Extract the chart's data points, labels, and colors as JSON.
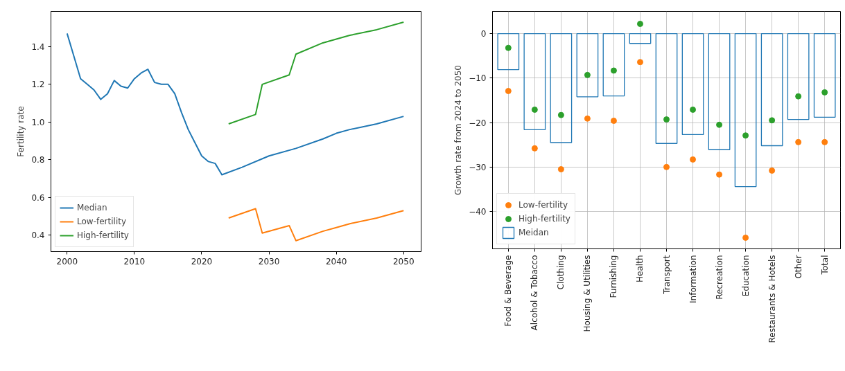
{
  "chart_data": [
    {
      "type": "line",
      "ylabel": "Fertility rate",
      "xlim": [
        1997.6,
        2052.6
      ],
      "ylim": [
        0.312,
        1.587
      ],
      "xticks": [
        2000,
        2010,
        2020,
        2030,
        2040,
        2050
      ],
      "yticks": [
        {
          "value": 0.4,
          "label": "0.4"
        },
        {
          "value": 0.6,
          "label": "0.6"
        },
        {
          "value": 0.8,
          "label": "0.8"
        },
        {
          "value": 1.0,
          "label": "1.0"
        },
        {
          "value": 1.2,
          "label": "1.2"
        },
        {
          "value": 1.4,
          "label": "1.4"
        }
      ],
      "grid": false,
      "legend": "bottom left",
      "series": [
        {
          "name": "Median",
          "color": "#1f77b4",
          "x": [
            2000,
            2001,
            2002,
            2003,
            2004,
            2005,
            2006,
            2007,
            2008,
            2009,
            2010,
            2011,
            2012,
            2013,
            2014,
            2015,
            2016,
            2017,
            2018,
            2019,
            2020,
            2021,
            2022,
            2023,
            2026,
            2030,
            2034,
            2038,
            2040,
            2042,
            2046,
            2050
          ],
          "values": [
            1.47,
            1.35,
            1.23,
            1.2,
            1.17,
            1.12,
            1.15,
            1.22,
            1.19,
            1.18,
            1.23,
            1.26,
            1.28,
            1.21,
            1.2,
            1.2,
            1.15,
            1.05,
            0.96,
            0.89,
            0.82,
            0.79,
            0.78,
            0.72,
            0.76,
            0.82,
            0.86,
            0.91,
            0.94,
            0.96,
            0.99,
            1.03
          ]
        },
        {
          "name": "Low-fertility",
          "color": "#ff7f0e",
          "x": [
            2024,
            2028,
            2029,
            2033,
            2034,
            2038,
            2040,
            2042,
            2046,
            2050
          ],
          "values": [
            0.49,
            0.54,
            0.41,
            0.45,
            0.37,
            0.42,
            0.44,
            0.46,
            0.49,
            0.53
          ]
        },
        {
          "name": "High-fertility",
          "color": "#2ca02c",
          "x": [
            2024,
            2028,
            2029,
            2033,
            2034,
            2038,
            2040,
            2042,
            2046,
            2050
          ],
          "values": [
            0.99,
            1.04,
            1.2,
            1.25,
            1.36,
            1.42,
            1.44,
            1.46,
            1.49,
            1.53
          ]
        }
      ]
    },
    {
      "type": "bar",
      "ylabel": "Growth rate from 2024 to 2050",
      "ylim": [
        -48.4,
        5.0
      ],
      "yticks": [
        {
          "value": -40,
          "label": "−40"
        },
        {
          "value": -30,
          "label": "−30"
        },
        {
          "value": -20,
          "label": "−20"
        },
        {
          "value": -10,
          "label": "−10"
        },
        0
      ],
      "grid": true,
      "legend": "bottom left",
      "marker": "circle",
      "categories": [
        "Food & Beverage",
        "Alcohol & Tobacco",
        "Clothing",
        "Housing & Utilities",
        "Furnishing",
        "Health",
        "Transport",
        "Information",
        "Recreation",
        "Education",
        "Restaurants & Hotels",
        "Other",
        "Total"
      ],
      "series": [
        {
          "name": "Low-fertility",
          "type": "scatter",
          "color": "#ff7f0e",
          "values": [
            -12.9,
            -25.8,
            -30.5,
            -19.1,
            -19.6,
            -6.4,
            -30.0,
            -28.3,
            -31.7,
            -45.9,
            -30.8,
            -24.4,
            -24.4
          ]
        },
        {
          "name": "High-fertility",
          "type": "scatter",
          "color": "#2ca02c",
          "values": [
            -3.2,
            -17.1,
            -18.3,
            -9.3,
            -8.3,
            2.2,
            -19.3,
            -17.1,
            -20.5,
            -22.9,
            -19.5,
            -14.1,
            -13.2
          ]
        },
        {
          "name": "Meidan",
          "type": "bar",
          "color": "#1f77b4",
          "values": [
            -8.1,
            -21.6,
            -24.5,
            -14.2,
            -14.0,
            -2.2,
            -24.7,
            -22.7,
            -26.1,
            -34.4,
            -25.2,
            -19.3,
            -18.8
          ]
        }
      ]
    }
  ]
}
